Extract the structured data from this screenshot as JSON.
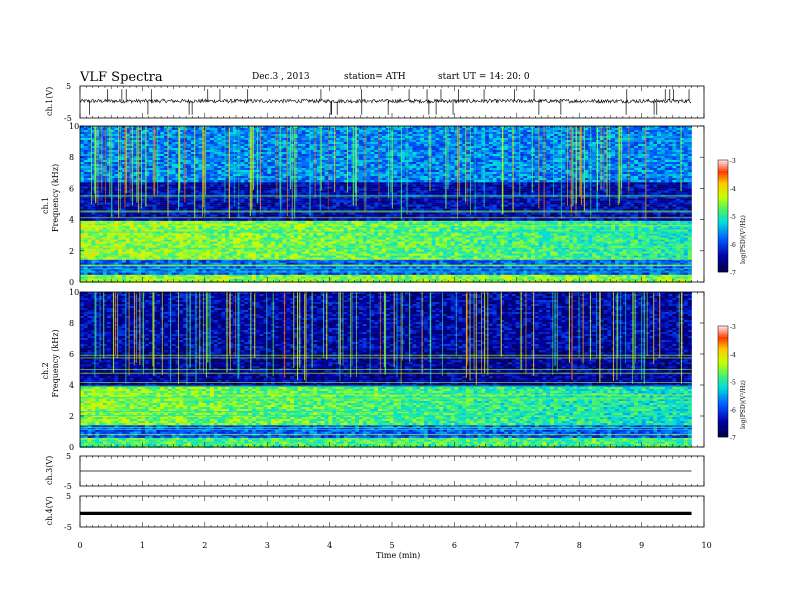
{
  "header": {
    "title": "VLF  Spectra",
    "date": "Dec.3  , 2013",
    "station": "station= ATH",
    "start": "start  UT  =    14: 20: 0"
  },
  "chart_data": [
    {
      "type": "line",
      "panel": "ch1",
      "ylabel": "ch.1(V)",
      "yticks": [
        "5",
        "-5"
      ],
      "ylim": [
        -5,
        5
      ],
      "x_range_min": [
        0,
        9.8
      ],
      "description_values": {
        "baseline_v": 0.3,
        "noise_amplitude_v": 1.2,
        "spike_amplitude_v": 4
      },
      "color": "#000000"
    },
    {
      "type": "heatmap",
      "panel": "ch1-spectrogram",
      "ylabel_channel": "ch.1",
      "ylabel": "Frequency  (kHz)",
      "yticks": [
        "0",
        "2",
        "4",
        "6",
        "8",
        "10"
      ],
      "ylim_khz": [
        0,
        10
      ],
      "x_range_min": [
        0,
        9.8
      ],
      "colorbar": {
        "label": "log(PSD)(V²/Hz)",
        "ticks": [
          "-3",
          "-4",
          "-5",
          "-6",
          "-7"
        ],
        "range": [
          -7,
          -3
        ]
      },
      "bands_khz": [
        {
          "from": 0,
          "to": 0.6,
          "logpsd": -4.5
        },
        {
          "from": 0.6,
          "to": 1.5,
          "logpsd": -5.8
        },
        {
          "from": 1.5,
          "to": 4.0,
          "logpsd": -4.4
        },
        {
          "from": 4.0,
          "to": 6.5,
          "logpsd": -6.4
        },
        {
          "from": 6.5,
          "to": 10,
          "logpsd": -5.6
        }
      ]
    },
    {
      "type": "heatmap",
      "panel": "ch2-spectrogram",
      "ylabel_channel": "ch.2",
      "ylabel": "Frequency  (kHz)",
      "yticks": [
        "0",
        "2",
        "4",
        "6",
        "8",
        "10"
      ],
      "ylim_khz": [
        0,
        10
      ],
      "x_range_min": [
        0,
        9.8
      ],
      "colorbar": {
        "label": "log(PSD)(V²/Hz)",
        "ticks": [
          "-3",
          "-4",
          "-5",
          "-6",
          "-7"
        ],
        "range": [
          -7,
          -3
        ]
      },
      "bands_khz": [
        {
          "from": 0,
          "to": 0.6,
          "logpsd": -4.8
        },
        {
          "from": 0.6,
          "to": 1.5,
          "logpsd": -5.8
        },
        {
          "from": 1.5,
          "to": 4.0,
          "logpsd": -4.5
        },
        {
          "from": 4.0,
          "to": 6.5,
          "logpsd": -6.5
        },
        {
          "from": 6.5,
          "to": 10,
          "logpsd": -6.4
        }
      ]
    },
    {
      "type": "line",
      "panel": "ch3",
      "ylabel": "ch.3(V)",
      "yticks": [
        "5",
        "-5"
      ],
      "ylim": [
        -5,
        5
      ],
      "x_range_min": [
        0,
        9.8
      ],
      "level_v": 0
    },
    {
      "type": "line",
      "panel": "ch4",
      "ylabel": "ch.4(V)",
      "yticks": [
        "5",
        "-5"
      ],
      "ylim": [
        -5,
        5
      ],
      "x_range_min": [
        0,
        9.8
      ],
      "level_v": -0.6
    }
  ],
  "xaxis": {
    "label": "Time  (min)",
    "ticks": [
      "0",
      "1",
      "2",
      "3",
      "4",
      "5",
      "6",
      "7",
      "8",
      "9",
      "10"
    ],
    "xlim": [
      0,
      10
    ]
  }
}
